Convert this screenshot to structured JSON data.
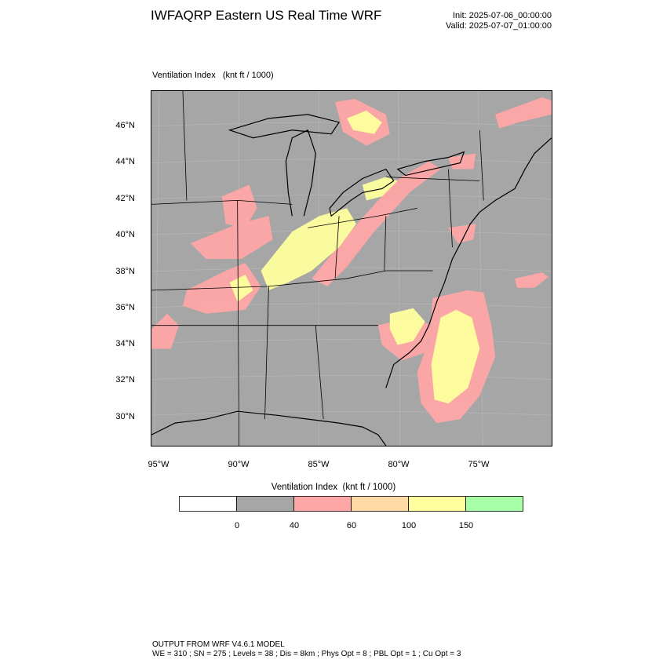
{
  "header": {
    "title": "IWFAQRP Eastern US Real Time WRF",
    "init": "Init: 2025-07-06_00:00:00",
    "valid": "Valid: 2025-07-07_01:00:00"
  },
  "map": {
    "field_label": "Ventilation Index   (knt ft / 1000)",
    "background_color": "#a6a6a6",
    "lat_labels": [
      "46°N",
      "44°N",
      "42°N",
      "40°N",
      "38°N",
      "36°N",
      "34°N",
      "32°N",
      "30°N"
    ],
    "lon_labels": [
      "95°W",
      "90°W",
      "85°W",
      "80°W",
      "75°W"
    ]
  },
  "colorbar": {
    "title": "Ventilation Index  (knt ft / 1000)",
    "colors": [
      "#ffffff",
      "#a6a6a6",
      "#ffa6a6",
      "#ffd9a6",
      "#ffff9e",
      "#a6ffa6"
    ],
    "labels": [
      "0",
      "40",
      "60",
      "100",
      "150"
    ]
  },
  "footer": {
    "line1": "OUTPUT FROM WRF V4.6.1 MODEL",
    "line2": "WE = 310 ; SN = 275 ; Levels = 38 ; Dis = 8km ; Phys Opt = 8 ; PBL Opt = 1 ; Cu Opt = 3"
  }
}
